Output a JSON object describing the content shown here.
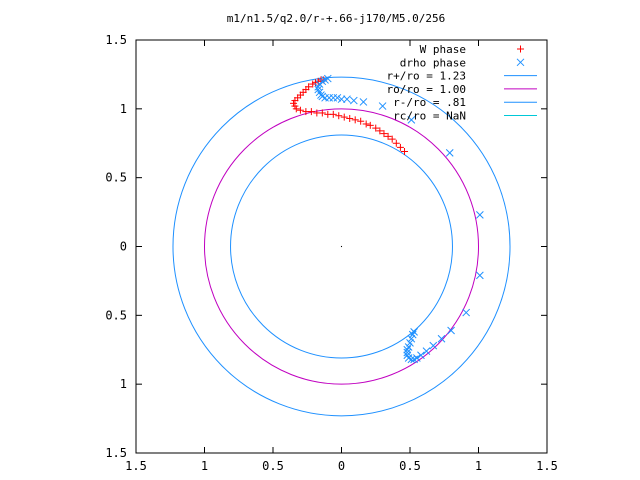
{
  "chart_data": {
    "type": "scatter",
    "title": "m1/n1.5/q2.0/r-+.66-j170/M5.0/256",
    "xlabel": "",
    "ylabel": "",
    "xlim": [
      -1.5,
      1.5
    ],
    "ylim": [
      -1.5,
      1.5
    ],
    "grid": false,
    "legend_position": "top-right",
    "x_ticks": [
      -1.5,
      -1,
      -0.5,
      0,
      0.5,
      1,
      1.5
    ],
    "x_tick_labels": [
      "1.5",
      "1",
      "0.5",
      "0",
      "0.5",
      "1",
      "1.5"
    ],
    "y_ticks": [
      1.5,
      1,
      0.5,
      0,
      -0.5,
      -1,
      -1.5
    ],
    "y_tick_labels": [
      "1.5",
      "1",
      "0.5",
      "0",
      "0.5",
      "1",
      "1.5"
    ],
    "series": [
      {
        "name": "W phase",
        "marker": "+",
        "color": "#ff0000",
        "points": [
          [
            0.46,
            0.69
          ],
          [
            0.43,
            0.72
          ],
          [
            0.4,
            0.75
          ],
          [
            0.37,
            0.78
          ],
          [
            0.34,
            0.8
          ],
          [
            0.31,
            0.82
          ],
          [
            0.28,
            0.84
          ],
          [
            0.25,
            0.86
          ],
          [
            0.21,
            0.88
          ],
          [
            0.18,
            0.89
          ],
          [
            0.14,
            0.91
          ],
          [
            0.1,
            0.92
          ],
          [
            0.06,
            0.93
          ],
          [
            0.02,
            0.94
          ],
          [
            -0.02,
            0.95
          ],
          [
            -0.06,
            0.96
          ],
          [
            -0.1,
            0.96
          ],
          [
            -0.14,
            0.97
          ],
          [
            -0.18,
            0.97
          ],
          [
            -0.22,
            0.98
          ],
          [
            -0.26,
            0.98
          ],
          [
            -0.3,
            0.99
          ],
          [
            -0.33,
            1.0
          ],
          [
            -0.34,
            1.02
          ],
          [
            -0.35,
            1.04
          ],
          [
            -0.34,
            1.06
          ],
          [
            -0.32,
            1.08
          ],
          [
            -0.3,
            1.1
          ],
          [
            -0.28,
            1.12
          ],
          [
            -0.26,
            1.14
          ],
          [
            -0.24,
            1.16
          ],
          [
            -0.21,
            1.18
          ],
          [
            -0.19,
            1.19
          ],
          [
            -0.17,
            1.2
          ],
          [
            -0.15,
            1.21
          ],
          [
            -0.13,
            1.21
          ]
        ]
      },
      {
        "name": "drho phase",
        "marker": "x",
        "color": "#1e90ff",
        "points": [
          [
            -0.1,
            1.22
          ],
          [
            -0.12,
            1.21
          ],
          [
            -0.14,
            1.2
          ],
          [
            -0.16,
            1.18
          ],
          [
            -0.17,
            1.16
          ],
          [
            -0.17,
            1.14
          ],
          [
            -0.16,
            1.12
          ],
          [
            -0.15,
            1.1
          ],
          [
            -0.14,
            1.09
          ],
          [
            -0.12,
            1.08
          ],
          [
            -0.09,
            1.08
          ],
          [
            -0.06,
            1.08
          ],
          [
            -0.03,
            1.08
          ],
          [
            0.0,
            1.07
          ],
          [
            0.04,
            1.07
          ],
          [
            0.09,
            1.06
          ],
          [
            0.16,
            1.05
          ],
          [
            0.3,
            1.02
          ],
          [
            0.51,
            0.92
          ],
          [
            0.79,
            0.68
          ],
          [
            1.01,
            0.23
          ],
          [
            1.01,
            -0.21
          ],
          [
            0.91,
            -0.48
          ],
          [
            0.8,
            -0.61
          ],
          [
            0.73,
            -0.67
          ],
          [
            0.67,
            -0.72
          ],
          [
            0.62,
            -0.76
          ],
          [
            0.58,
            -0.79
          ],
          [
            0.55,
            -0.81
          ],
          [
            0.53,
            -0.82
          ],
          [
            0.51,
            -0.82
          ],
          [
            0.49,
            -0.81
          ],
          [
            0.48,
            -0.79
          ],
          [
            0.48,
            -0.77
          ],
          [
            0.48,
            -0.75
          ],
          [
            0.49,
            -0.73
          ],
          [
            0.5,
            -0.7
          ],
          [
            0.51,
            -0.67
          ],
          [
            0.52,
            -0.64
          ],
          [
            0.53,
            -0.62
          ]
        ]
      }
    ],
    "circles": [
      {
        "name": "r+/ro = 1.23",
        "radius": 1.23,
        "color": "#1e90ff"
      },
      {
        "name": "ro/ro = 1.00",
        "radius": 1.0,
        "color": "#c000c0"
      },
      {
        "name": "r-/ro = .81",
        "radius": 0.81,
        "color": "#1e90ff"
      },
      {
        "name": "rc/ro = NaN",
        "radius": null,
        "color": "#00c8d8"
      }
    ]
  }
}
